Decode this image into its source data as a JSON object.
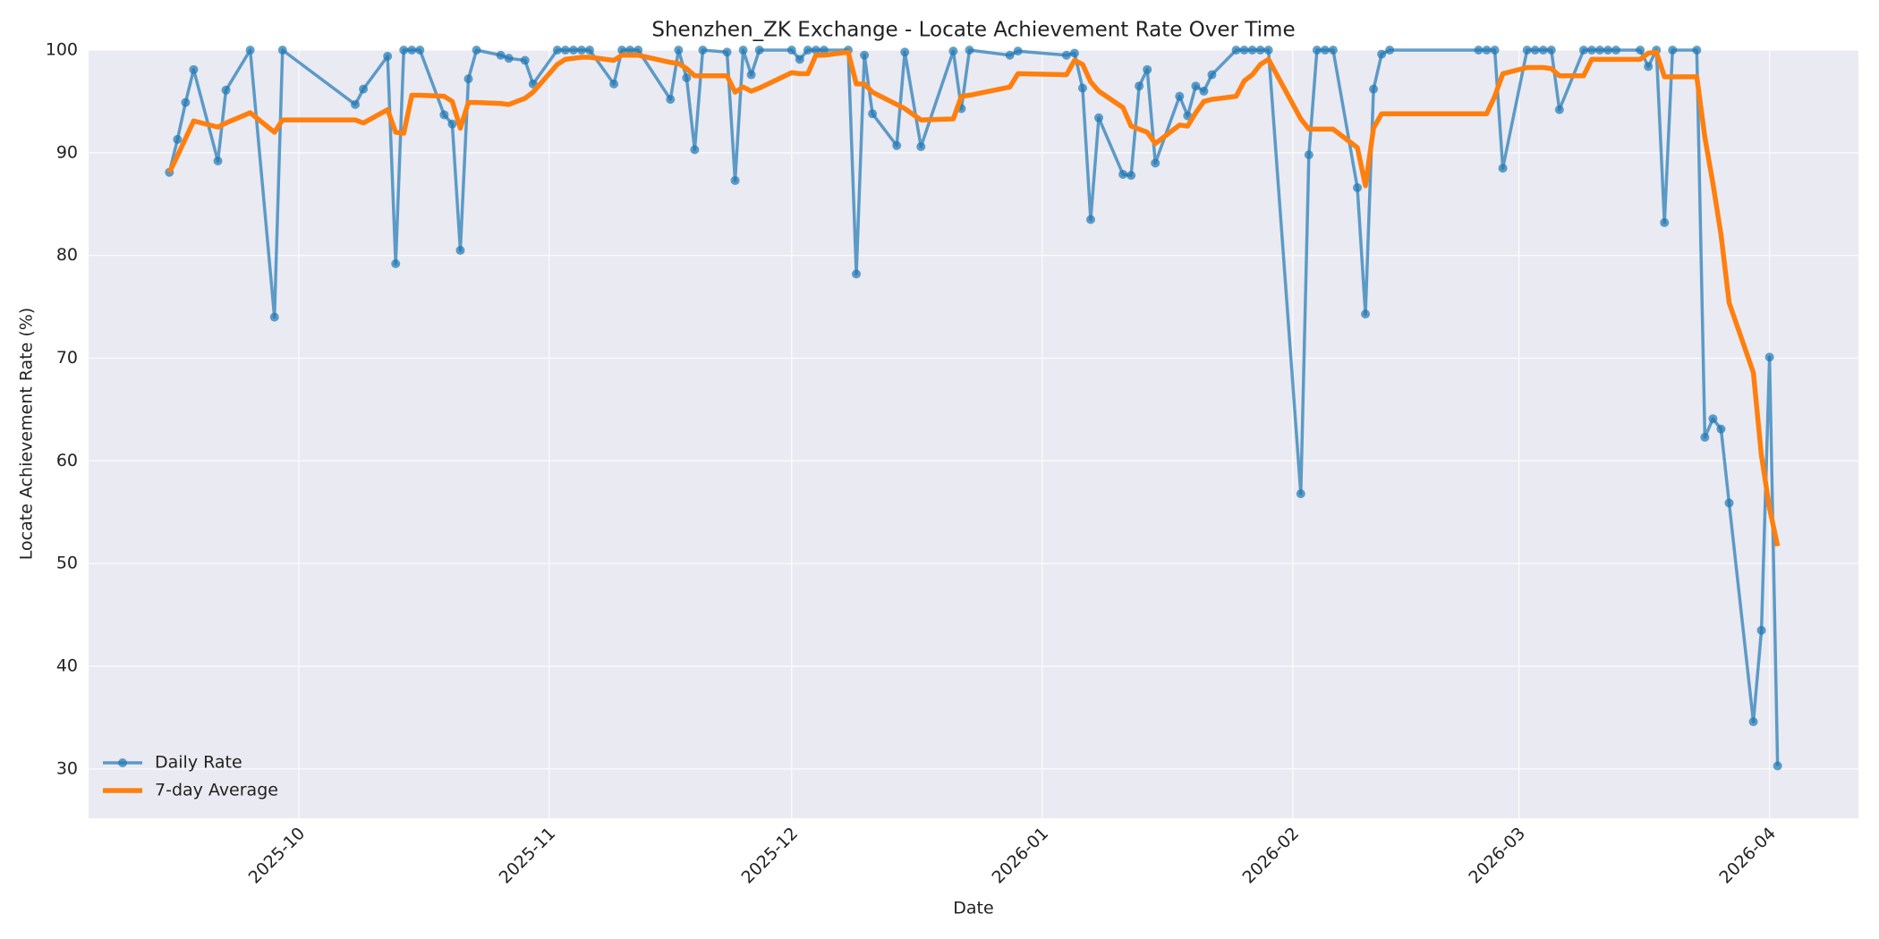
{
  "chart_data": {
    "type": "line",
    "title": "Shenzhen_ZK Exchange - Locate Achievement Rate Over Time",
    "x_label": "Date",
    "y_label": "Locate Achievement Rate (%)",
    "x": [
      "2025-09-15",
      "2025-09-16",
      "2025-09-17",
      "2025-09-18",
      "2025-09-21",
      "2025-09-22",
      "2025-09-25",
      "2025-09-28",
      "2025-09-29",
      "2025-10-08",
      "2025-10-09",
      "2025-10-12",
      "2025-10-13",
      "2025-10-14",
      "2025-10-15",
      "2025-10-16",
      "2025-10-19",
      "2025-10-20",
      "2025-10-21",
      "2025-10-22",
      "2025-10-23",
      "2025-10-26",
      "2025-10-27",
      "2025-10-29",
      "2025-10-30",
      "2025-11-02",
      "2025-11-03",
      "2025-11-04",
      "2025-11-05",
      "2025-11-06",
      "2025-11-09",
      "2025-11-10",
      "2025-11-11",
      "2025-11-12",
      "2025-11-16",
      "2025-11-17",
      "2025-11-18",
      "2025-11-19",
      "2025-11-20",
      "2025-11-23",
      "2025-11-24",
      "2025-11-25",
      "2025-11-26",
      "2025-11-27",
      "2025-12-01",
      "2025-12-02",
      "2025-12-03",
      "2025-12-04",
      "2025-12-05",
      "2025-12-08",
      "2025-12-09",
      "2025-12-10",
      "2025-12-11",
      "2025-12-14",
      "2025-12-15",
      "2025-12-17",
      "2025-12-21",
      "2025-12-22",
      "2025-12-23",
      "2025-12-28",
      "2025-12-29",
      "2026-01-04",
      "2026-01-05",
      "2026-01-06",
      "2026-01-07",
      "2026-01-08",
      "2026-01-11",
      "2026-01-12",
      "2026-01-13",
      "2026-01-14",
      "2026-01-15",
      "2026-01-18",
      "2026-01-19",
      "2026-01-20",
      "2026-01-21",
      "2026-01-22",
      "2026-01-25",
      "2026-01-26",
      "2026-01-27",
      "2026-01-28",
      "2026-01-29",
      "2026-02-02",
      "2026-02-03",
      "2026-02-04",
      "2026-02-05",
      "2026-02-06",
      "2026-02-09",
      "2026-02-10",
      "2026-02-11",
      "2026-02-12",
      "2026-02-13",
      "2026-02-24",
      "2026-02-25",
      "2026-02-26",
      "2026-02-27",
      "2026-03-02",
      "2026-03-03",
      "2026-03-04",
      "2026-03-05",
      "2026-03-06",
      "2026-03-09",
      "2026-03-10",
      "2026-03-11",
      "2026-03-12",
      "2026-03-13",
      "2026-03-16",
      "2026-03-17",
      "2026-03-18",
      "2026-03-19",
      "2026-03-20",
      "2026-03-23",
      "2026-03-24",
      "2026-03-25",
      "2026-03-26",
      "2026-03-27",
      "2026-03-30",
      "2026-03-31",
      "2026-04-01",
      "2026-04-02"
    ],
    "series": [
      {
        "name": "Daily Rate",
        "color": "#1f77b4",
        "markers": true,
        "values": [
          88.1,
          91.3,
          94.9,
          98.1,
          89.2,
          96.1,
          100,
          74.0,
          100,
          94.7,
          96.2,
          99.4,
          79.2,
          100,
          100,
          100,
          93.7,
          92.8,
          80.5,
          97.2,
          100,
          99.5,
          99.2,
          99.0,
          96.7,
          100,
          100,
          100,
          100,
          100,
          96.7,
          100,
          100,
          100,
          95.2,
          100,
          97.3,
          90.3,
          100,
          99.8,
          87.3,
          100,
          97.6,
          100,
          100,
          99.1,
          100,
          100,
          100,
          100,
          78.2,
          99.5,
          93.8,
          90.7,
          99.8,
          90.6,
          99.9,
          94.3,
          100,
          99.5,
          99.9,
          99.5,
          99.7,
          96.3,
          83.5,
          93.4,
          87.9,
          87.8,
          96.5,
          98.1,
          89.0,
          95.5,
          93.6,
          96.5,
          96.0,
          97.6,
          100,
          100,
          100,
          100,
          100,
          56.8,
          89.8,
          100,
          100,
          100,
          86.6,
          74.3,
          96.2,
          99.6,
          100,
          100,
          100,
          100,
          88.5,
          100,
          100,
          100,
          100,
          94.2,
          100,
          100,
          100,
          100,
          100,
          100,
          98.4,
          100,
          83.2,
          100,
          100,
          62.3,
          64.1,
          63.1,
          55.9,
          34.6,
          43.5,
          70.1,
          30.3
        ]
      },
      {
        "name": "7-day Average",
        "color": "#ff7f0e",
        "markers": false,
        "values": [
          88.1,
          89.7,
          91.4,
          93.1,
          92.5,
          92.9,
          93.9,
          92.0,
          93.2,
          93.2,
          92.9,
          94.2,
          92.0,
          91.9,
          95.6,
          95.6,
          95.5,
          95.0,
          92.4,
          94.9,
          94.9,
          94.8,
          94.7,
          95.3,
          95.9,
          98.6,
          99.1,
          99.2,
          99.3,
          99.3,
          99.0,
          99.5,
          99.5,
          99.5,
          98.8,
          98.7,
          98.2,
          97.5,
          97.5,
          97.5,
          95.9,
          96.4,
          96.0,
          96.3,
          97.8,
          97.7,
          97.7,
          99.5,
          99.5,
          99.8,
          96.7,
          96.7,
          95.9,
          94.7,
          94.3,
          93.2,
          93.3,
          95.5,
          95.6,
          96.4,
          97.7,
          97.6,
          99.0,
          98.6,
          96.9,
          96.0,
          94.4,
          92.6,
          92.3,
          92.0,
          90.9,
          92.7,
          92.6,
          93.9,
          95.0,
          95.2,
          95.5,
          97.0,
          97.6,
          98.6,
          99.1,
          93.3,
          92.3,
          92.3,
          92.3,
          92.3,
          90.5,
          86.8,
          92.4,
          93.8,
          93.8,
          93.8,
          93.8,
          95.5,
          97.7,
          98.3,
          98.3,
          98.3,
          98.2,
          97.5,
          97.5,
          99.1,
          99.1,
          99.1,
          99.1,
          99.1,
          99.7,
          99.8,
          97.4,
          97.4,
          97.4,
          91.5,
          87.0,
          82.0,
          75.4,
          68.6,
          60.5,
          55.4,
          51.7
        ]
      }
    ],
    "xlim": [
      "2025-09-05",
      "2026-04-12"
    ],
    "xticks": [
      {
        "value": "2025-10-01",
        "label": "2025-10"
      },
      {
        "value": "2025-11-01",
        "label": "2025-11"
      },
      {
        "value": "2025-12-01",
        "label": "2025-12"
      },
      {
        "value": "2026-01-01",
        "label": "2026-01"
      },
      {
        "value": "2026-02-01",
        "label": "2026-02"
      },
      {
        "value": "2026-03-01",
        "label": "2026-03"
      },
      {
        "value": "2026-04-01",
        "label": "2026-04"
      }
    ],
    "ylim": [
      25.2,
      100
    ],
    "yticks": [
      30,
      40,
      50,
      60,
      70,
      80,
      90,
      100
    ],
    "grid": true,
    "legend": "lower left"
  }
}
